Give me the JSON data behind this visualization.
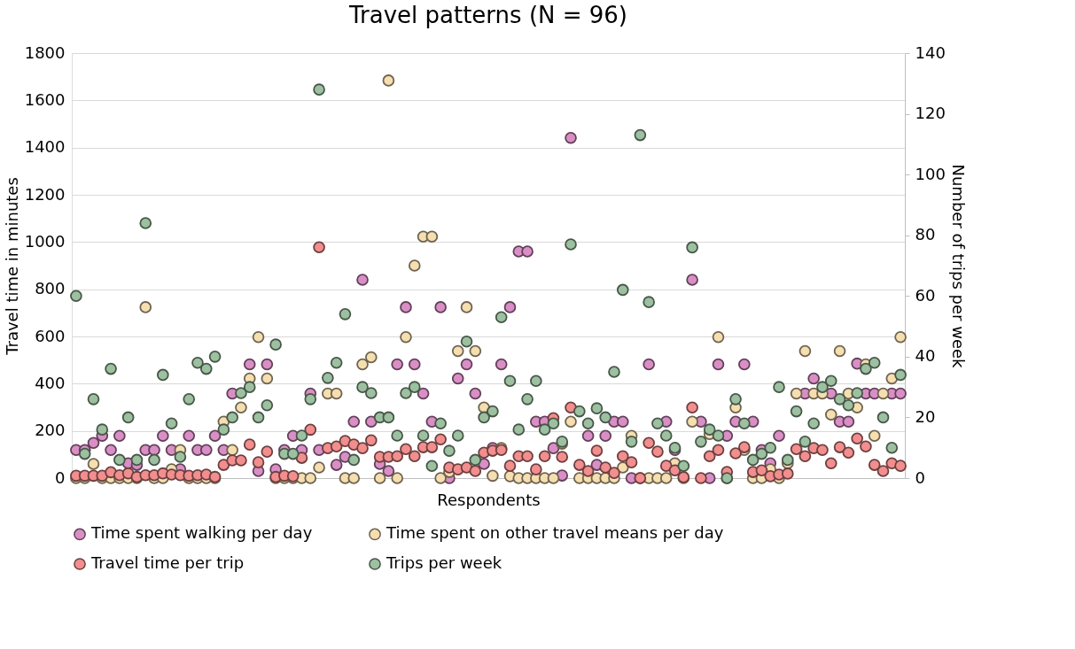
{
  "chart_data": {
    "type": "scatter",
    "title": "Travel patterns (N = 96)",
    "xlabel": "Respondents",
    "ylabel": "Travel time in minutes",
    "y2label": "Number of trips per week",
    "categories": [
      null,
      null,
      null,
      null,
      null,
      null,
      null,
      null,
      null,
      null,
      null,
      null,
      null,
      null,
      null,
      null,
      null,
      null,
      null,
      null,
      null,
      null,
      null,
      null,
      null,
      null,
      null,
      null,
      null,
      null,
      null,
      null,
      null,
      null,
      null,
      null,
      null,
      null,
      null,
      null,
      null,
      null,
      null,
      null,
      null,
      null,
      null,
      null,
      null,
      null,
      null,
      null,
      null,
      null,
      null,
      null,
      null,
      null,
      null,
      null,
      null,
      null,
      null,
      null,
      null,
      null,
      null,
      null,
      null,
      null,
      null,
      null,
      null,
      null,
      null,
      null,
      null,
      null,
      null,
      null,
      null,
      null,
      null,
      null,
      null,
      null,
      null,
      null,
      null,
      null,
      null,
      null,
      null,
      null,
      null,
      null
    ],
    "ylim": [
      0,
      1800
    ],
    "yticks": [
      0,
      200,
      400,
      600,
      800,
      1000,
      1200,
      1400,
      1600,
      1800
    ],
    "y2lim": [
      0,
      140
    ],
    "y2ticks": [
      0,
      20,
      40,
      60,
      80,
      100,
      120,
      140
    ],
    "grid": "y",
    "legend": "bottom",
    "marker": "circle",
    "series": [
      {
        "name": "Time spent walking per day",
        "color": "#d98fc5",
        "values": [
          119,
          119,
          149,
          179,
          119,
          179,
          63,
          56,
          119,
          119,
          179,
          119,
          37,
          179,
          119,
          119,
          179,
          119,
          358,
          null,
          482,
          30,
          482,
          37,
          119,
          179,
          119,
          358,
          119,
          null,
          56,
          90,
          239,
          840,
          239,
          60,
          30,
          482,
          724,
          482,
          358,
          239,
          724,
          0,
          422,
          482,
          358,
          60,
          127,
          482,
          724,
          960,
          960,
          239,
          239,
          127,
          11,
          1441,
          null,
          179,
          56,
          179,
          239,
          239,
          0,
          null,
          482,
          null,
          239,
          119,
          null,
          840,
          239,
          0,
          482,
          179,
          239,
          482,
          239,
          119,
          63,
          179,
          null,
          null,
          358,
          422,
          null,
          358,
          239,
          239,
          485,
          358,
          358,
          null,
          358,
          358
        ]
      },
      {
        "name": "Time spent on other travel means per day",
        "color": "#f5deb0",
        "values": [
          0,
          0,
          60,
          0,
          0,
          0,
          0,
          0,
          724,
          0,
          0,
          37,
          119,
          0,
          0,
          0,
          0,
          239,
          119,
          299,
          422,
          597,
          422,
          0,
          0,
          0,
          0,
          0,
          45,
          358,
          358,
          0,
          0,
          482,
          512,
          0,
          1684,
          0,
          597,
          900,
          1023,
          1023,
          0,
          26,
          538,
          724,
          538,
          299,
          10,
          127,
          8,
          0,
          0,
          0,
          0,
          0,
          146,
          239,
          0,
          0,
          0,
          0,
          0,
          45,
          179,
          0,
          0,
          0,
          0,
          63,
          0,
          239,
          null,
          187,
          597,
          0,
          299,
          119,
          0,
          0,
          37,
          0,
          63,
          358,
          538,
          358,
          358,
          269,
          538,
          358,
          299,
          482,
          179,
          358,
          422,
          597
        ]
      },
      {
        "name": "Travel time per trip",
        "color": "#f28e8e",
        "values": [
          10,
          10,
          10,
          10,
          25,
          12,
          20,
          5,
          12,
          12,
          20,
          15,
          12,
          10,
          12,
          15,
          5,
          56,
          75,
          75,
          142,
          67,
          112,
          5,
          10,
          8,
          86,
          205,
          978,
          127,
          134,
          157,
          142,
          127,
          160,
          90,
          90,
          93,
          123,
          93,
          131,
          131,
          164,
          45,
          37,
          45,
          30,
          108,
          116,
          119,
          52,
          93,
          93,
          37,
          93,
          254,
          90,
          299,
          56,
          30,
          116,
          45,
          22,
          93,
          67,
          0,
          149,
          112,
          52,
          33,
          4,
          299,
          0,
          93,
          119,
          26,
          105,
          131,
          26,
          33,
          8,
          15,
          19,
          123,
          93,
          127,
          119,
          63,
          131,
          108,
          168,
          134,
          56,
          30,
          63,
          52
        ]
      },
      {
        "name": "Trips per week",
        "color": "#9dc0a0",
        "axis": "y2",
        "values": [
          60,
          8,
          26,
          16,
          36,
          6,
          20,
          6,
          84,
          6,
          34,
          18,
          7,
          26,
          38,
          36,
          40,
          16,
          20,
          28,
          30,
          20,
          24,
          44,
          8,
          8,
          14,
          26,
          128,
          33,
          38,
          54,
          6,
          30,
          28,
          20,
          20,
          14,
          28,
          30,
          14,
          4,
          18,
          9,
          14,
          45,
          6,
          20,
          22,
          53,
          32,
          16,
          26,
          32,
          16,
          18,
          12,
          77,
          22,
          18,
          23,
          20,
          35,
          62,
          12,
          113,
          58,
          18,
          14,
          10,
          4,
          76,
          12,
          16,
          14,
          0,
          26,
          18,
          6,
          8,
          10,
          30,
          6,
          22,
          12,
          18,
          30,
          32,
          26,
          24,
          28,
          36,
          38,
          20,
          10,
          34
        ]
      }
    ]
  }
}
